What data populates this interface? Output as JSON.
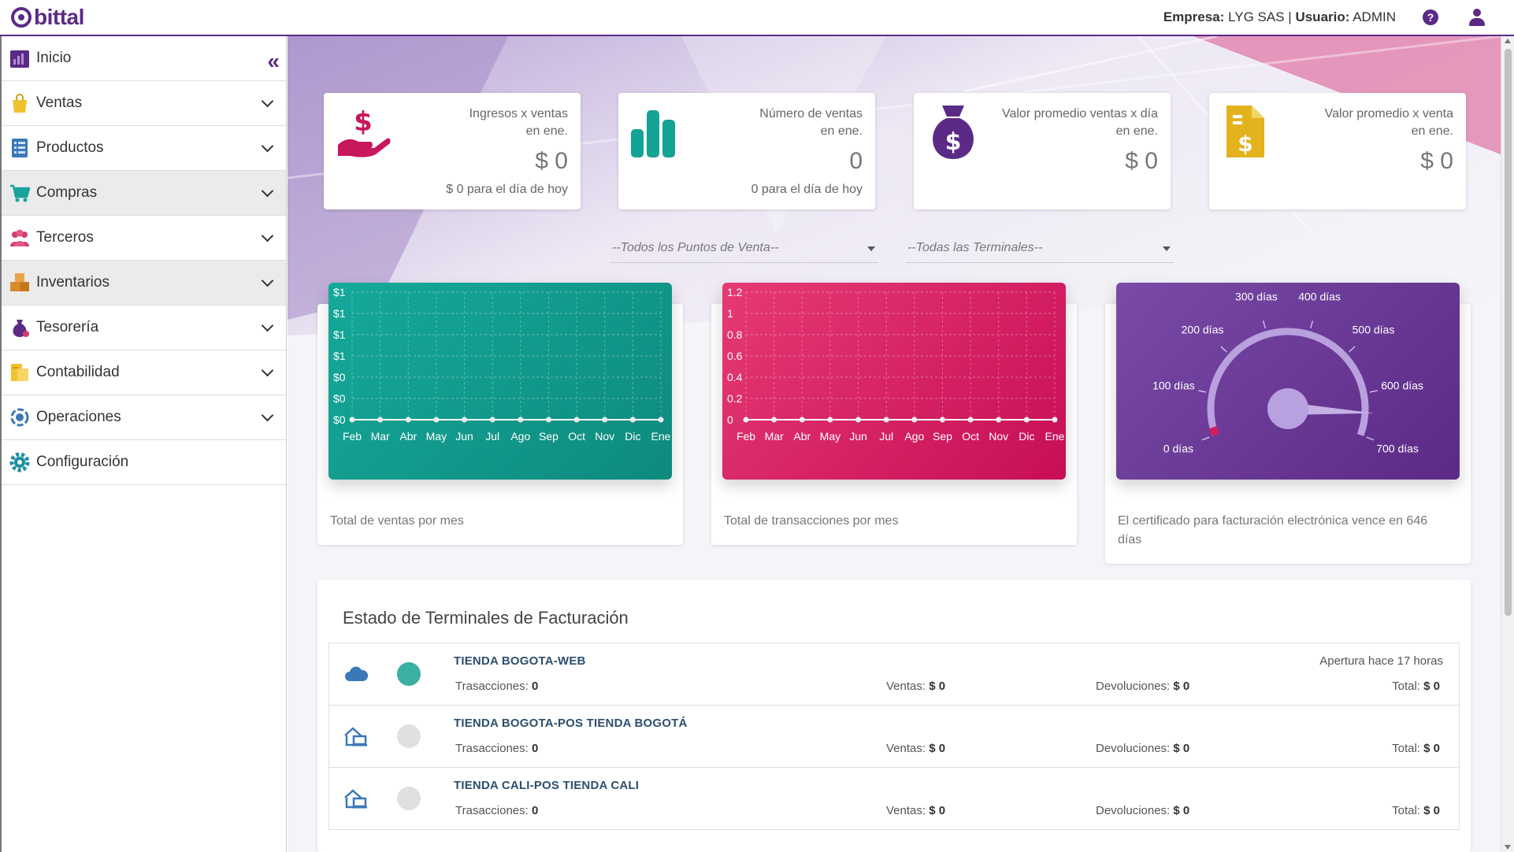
{
  "header": {
    "logo_text": "bittal",
    "company_label": "Empresa:",
    "company_name": "LYG SAS",
    "separator": "|",
    "user_label": "Usuario:",
    "user_name": "ADMIN",
    "help_glyph": "?"
  },
  "sidebar": {
    "collapse_glyph": "«",
    "items": [
      {
        "label": "Inicio",
        "icon": "dashboard-icon",
        "color": "#5b2a86"
      },
      {
        "label": "Ventas",
        "icon": "shopping-bag-icon",
        "color": "#f2c12e"
      },
      {
        "label": "Productos",
        "icon": "catalog-icon",
        "color": "#3a78b8"
      },
      {
        "label": "Compras",
        "icon": "cart-icon",
        "color": "#1aa39a"
      },
      {
        "label": "Terceros",
        "icon": "people-icon",
        "color": "#d43b6e"
      },
      {
        "label": "Inventarios",
        "icon": "boxes-icon",
        "color": "#d98b2b"
      },
      {
        "label": "Tesorería",
        "icon": "money-bag-icon",
        "color": "#5b2a86"
      },
      {
        "label": "Contabilidad",
        "icon": "ledger-icon",
        "color": "#f2c12e"
      },
      {
        "label": "Operaciones",
        "icon": "operations-icon",
        "color": "#3a78b8"
      },
      {
        "label": "Configuración",
        "icon": "gear-icon",
        "color": "#1a8fa3"
      }
    ]
  },
  "kpis": [
    {
      "label_line1": "Ingresos x ventas",
      "label_line2": "en ene.",
      "value": "$ 0",
      "sub": "$ 0 para el día de hoy",
      "color": "#c8175d"
    },
    {
      "label_line1": "Número de ventas",
      "label_line2": "en ene.",
      "value": "0",
      "sub": "0 para el día de hoy",
      "color": "#14a394"
    },
    {
      "label_line1": "Valor promedio ventas x día",
      "label_line2": "en ene.",
      "value": "$ 0",
      "sub": "",
      "color": "#5b2a86"
    },
    {
      "label_line1": "Valor promedio x venta",
      "label_line2": "en ene.",
      "value": "$ 0",
      "sub": "",
      "color": "#e3b21c"
    }
  ],
  "filters": {
    "points_of_sale": "--Todos los Puntos de Venta--",
    "terminals": "--Todas las Terminales--"
  },
  "charts": {
    "sales_caption": "Total de ventas por mes",
    "transactions_caption": "Total de transacciones por mes",
    "certificate_caption_line1": "El certificado para facturación electrónica vence en 646",
    "certificate_caption_line2": "días"
  },
  "chart_data": [
    {
      "type": "line",
      "categories": [
        "Feb",
        "Mar",
        "Abr",
        "May",
        "Jun",
        "Jul",
        "Ago",
        "Sep",
        "Oct",
        "Nov",
        "Dic",
        "Ene"
      ],
      "values": [
        0,
        0,
        0,
        0,
        0,
        0,
        0,
        0,
        0,
        0,
        0,
        0
      ],
      "y_tick_labels": [
        "$1",
        "$1",
        "$1",
        "$1",
        "$0",
        "$0",
        "$0"
      ],
      "grid": true,
      "color": "#14a394"
    },
    {
      "type": "line",
      "categories": [
        "Feb",
        "Mar",
        "Abr",
        "May",
        "Jun",
        "Jul",
        "Ago",
        "Sep",
        "Oct",
        "Nov",
        "Dic",
        "Ene"
      ],
      "values": [
        0,
        0,
        0,
        0,
        0,
        0,
        0,
        0,
        0,
        0,
        0,
        0
      ],
      "y_tick_labels": [
        "1.2",
        "1",
        "0.8",
        "0.6",
        "0.4",
        "0.2",
        "0"
      ],
      "ylim": [
        0,
        1.2
      ],
      "grid": true,
      "color": "#d81b60"
    },
    {
      "type": "gauge",
      "value": 646,
      "range": [
        0,
        700
      ],
      "tick_labels": [
        "0 días",
        "100 días",
        "200 días",
        "300 días",
        "400 días",
        "500 días",
        "600 días",
        "700 días"
      ],
      "color": "#5b2a86"
    }
  ],
  "terminals": {
    "title": "Estado de Terminales de Facturación",
    "rows": [
      {
        "name": "TIENDA BOGOTA-WEB",
        "icon": "cloud-icon",
        "status_color": "#3ab0a2",
        "opened": "Apertura hace 17 horas",
        "tx_label": "Trasacciones:",
        "tx": "0",
        "sales_label": "Ventas:",
        "sales": "$ 0",
        "returns_label": "Devoluciones:",
        "returns": "$ 0",
        "total_label": "Total:",
        "total": "$ 0"
      },
      {
        "name": "TIENDA BOGOTA-POS TIENDA BOGOTÁ",
        "icon": "store-terminal-icon",
        "status_color": "#e0e0e0",
        "opened": "",
        "tx_label": "Trasacciones:",
        "tx": "0",
        "sales_label": "Ventas:",
        "sales": "$ 0",
        "returns_label": "Devoluciones:",
        "returns": "$ 0",
        "total_label": "Total:",
        "total": "$ 0"
      },
      {
        "name": "TIENDA CALI-POS TIENDA CALI",
        "icon": "store-terminal-icon",
        "status_color": "#e0e0e0",
        "opened": "",
        "tx_label": "Trasacciones:",
        "tx": "0",
        "sales_label": "Ventas:",
        "sales": "$ 0",
        "returns_label": "Devoluciones:",
        "returns": "$ 0",
        "total_label": "Total:",
        "total": "$ 0"
      }
    ]
  }
}
